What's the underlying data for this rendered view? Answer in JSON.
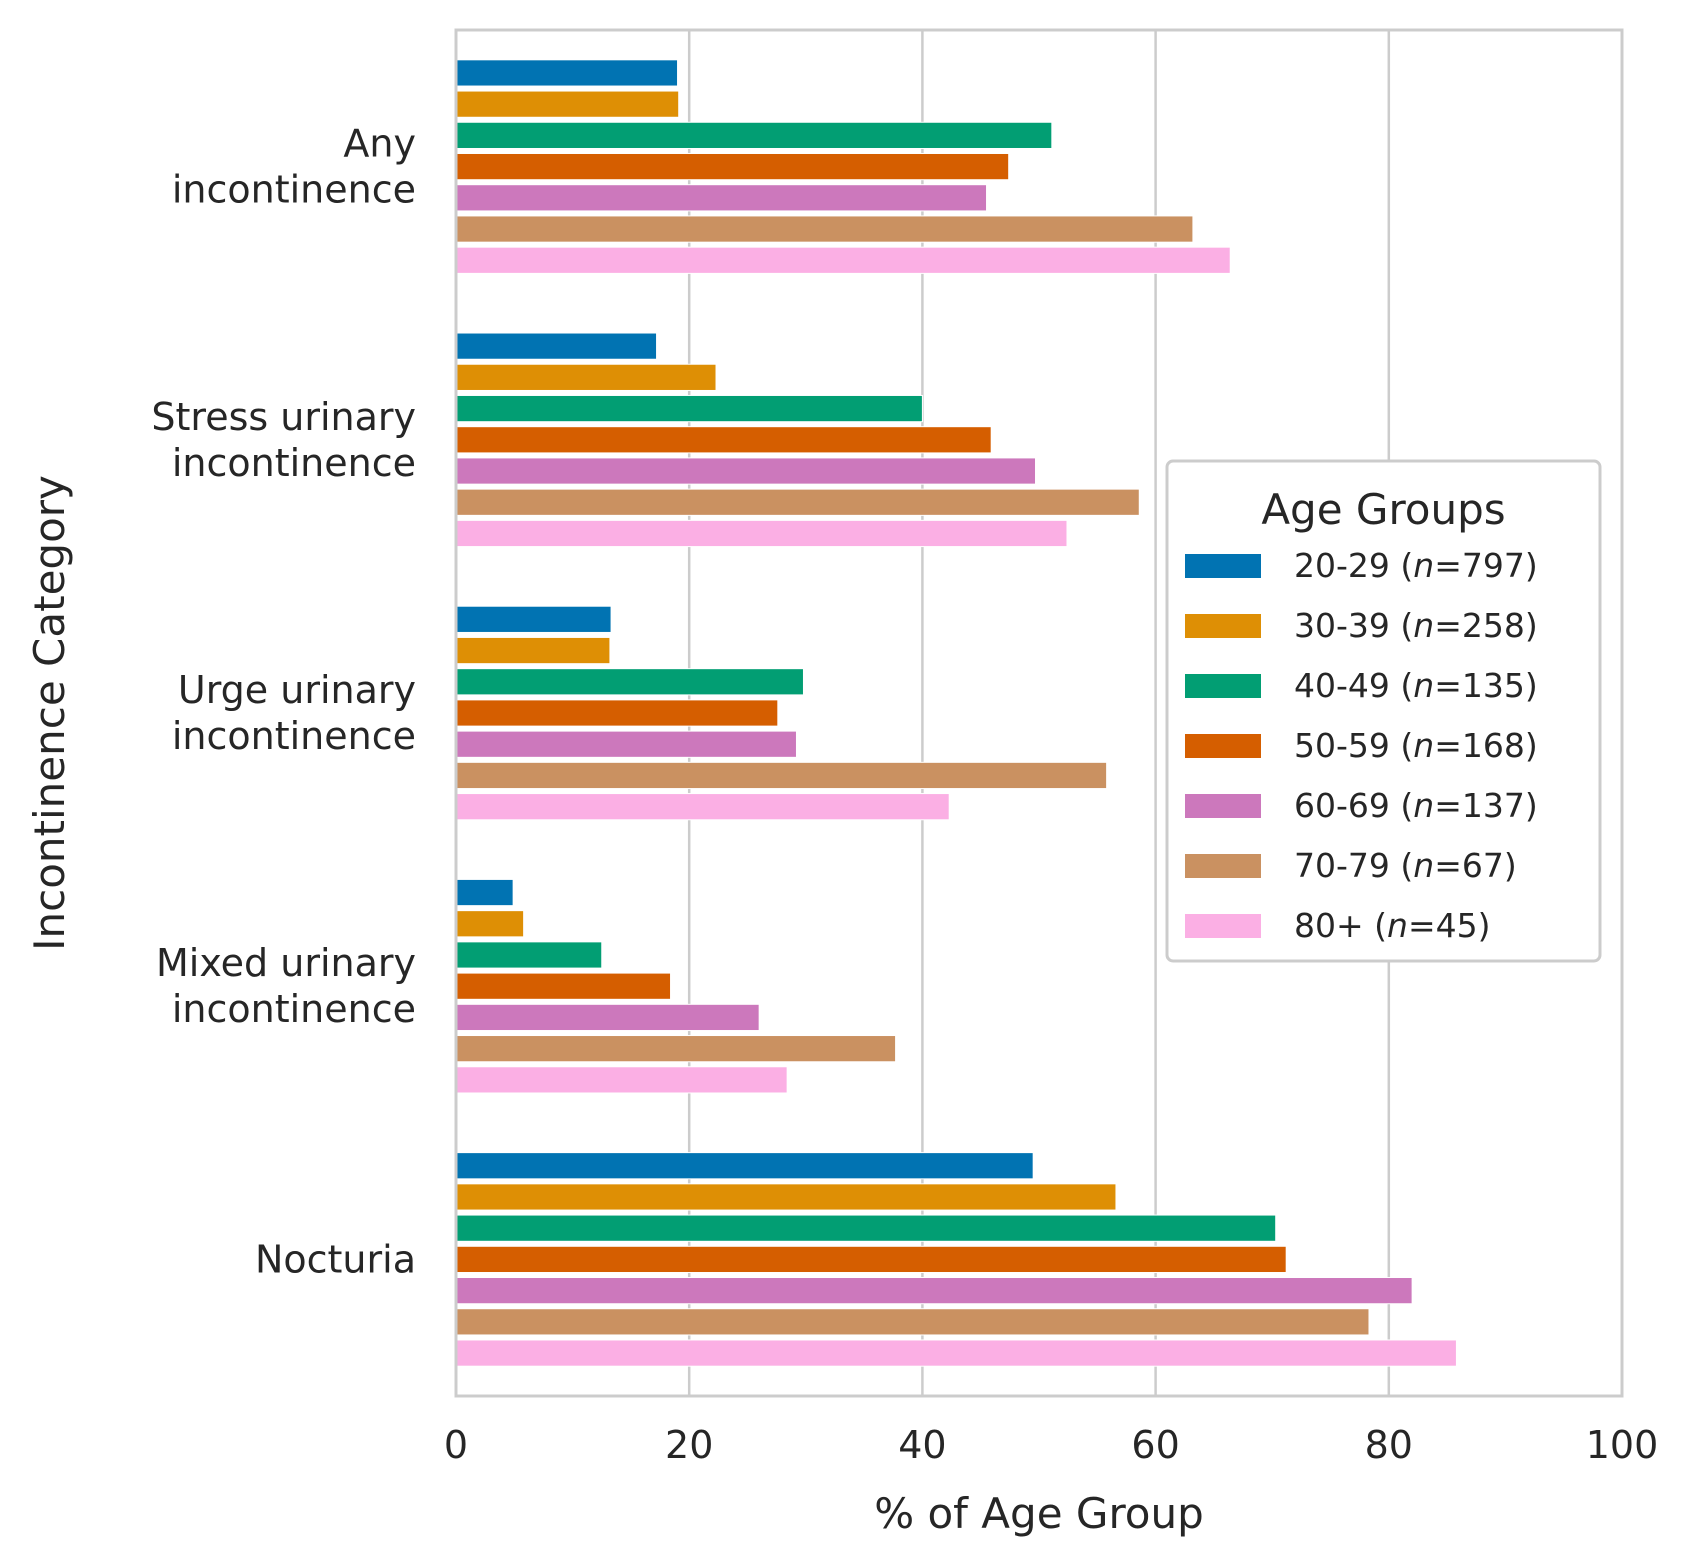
{
  "chart_data": {
    "type": "bar",
    "orientation": "horizontal",
    "categories": [
      [
        "Any",
        "incontinence"
      ],
      [
        "Stress urinary",
        "incontinence"
      ],
      [
        "Urge urinary",
        "incontinence"
      ],
      [
        "Mixed urinary",
        "incontinence"
      ],
      [
        "Nocturia"
      ]
    ],
    "series": [
      {
        "label": "20-29",
        "n": "797",
        "color": "#0173b2",
        "values": [
          19.0,
          17.2,
          13.3,
          4.9,
          49.5
        ]
      },
      {
        "label": "30-39",
        "n": "258",
        "color": "#de8f05",
        "values": [
          19.1,
          22.3,
          13.2,
          5.8,
          56.6
        ]
      },
      {
        "label": "40-49",
        "n": "135",
        "color": "#029e73",
        "values": [
          51.1,
          40.0,
          29.8,
          12.5,
          70.3
        ]
      },
      {
        "label": "50-59",
        "n": "168",
        "color": "#d55e00",
        "values": [
          47.4,
          45.9,
          27.6,
          18.4,
          71.2
        ]
      },
      {
        "label": "60-69",
        "n": "137",
        "color": "#cc78bc",
        "values": [
          45.5,
          49.7,
          29.2,
          26.0,
          82.0
        ]
      },
      {
        "label": "70-79",
        "n": "67",
        "color": "#ca9161",
        "values": [
          63.2,
          58.6,
          55.8,
          37.7,
          78.3
        ]
      },
      {
        "label": "80+",
        "n": "45",
        "color": "#fbafe4",
        "values": [
          66.4,
          52.4,
          42.3,
          28.4,
          85.8
        ]
      }
    ],
    "xlabel": "% of Age Group",
    "ylabel": "Incontinence Category",
    "xlim": [
      0,
      100
    ],
    "xticks": [
      "0",
      "20",
      "40",
      "60",
      "80",
      "100"
    ],
    "grid": "vertical",
    "legend": {
      "title": "Age Groups",
      "placement": "center-right",
      "n_prefix": "n",
      "eq": "="
    }
  }
}
